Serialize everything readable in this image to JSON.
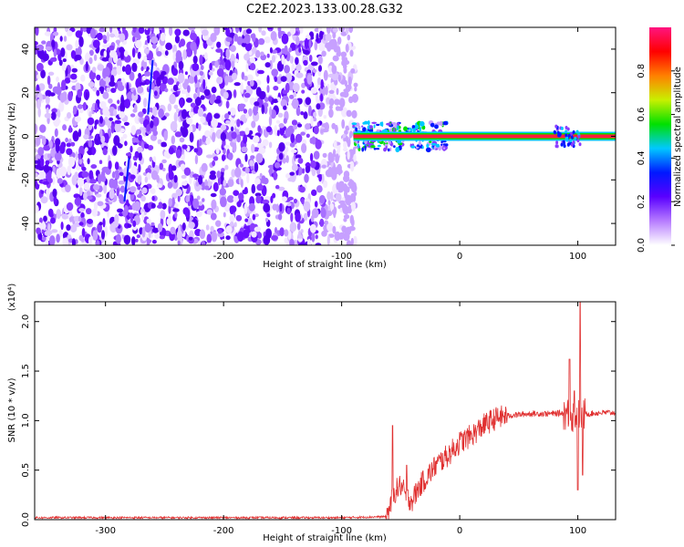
{
  "title": "C2E2.2023.133.00.28.G32",
  "chart_data": [
    {
      "type": "heatmap",
      "xlabel": "Height of straight line (km)",
      "ylabel": "Frequency (Hz)",
      "xlim": [
        -360,
        132
      ],
      "ylim": [
        -50,
        50
      ],
      "xticks": [
        -300,
        -200,
        -100,
        0,
        100
      ],
      "yticks": [
        -40,
        -20,
        0,
        20,
        40
      ],
      "noise_region_x": [
        -360,
        -88
      ],
      "carrier_start_x": -90,
      "carrier_frequency_hz": 0,
      "colorbar": {
        "label": "Normalized spectral amplitude",
        "range": [
          0,
          1
        ],
        "ticks": [
          "0.0",
          "0.2",
          "0.4",
          "0.6",
          "0.8"
        ],
        "colors": [
          "#ffffff",
          "#b77cff",
          "#5a00ff",
          "#0018ff",
          "#00c8ff",
          "#00e000",
          "#c8f000",
          "#ff8000",
          "#ff0000",
          "#ff1480"
        ]
      },
      "grid": false
    },
    {
      "type": "line",
      "xlabel": "Height of straight line (km)",
      "ylabel": "SNR (10 * v/v)",
      "y_multiplier_label": "(x10⁴)",
      "xlim": [
        -360,
        132
      ],
      "ylim": [
        0,
        2.2
      ],
      "xticks": [
        -300,
        -200,
        -100,
        0,
        100
      ],
      "yticks": [
        "0.0",
        "0.5",
        "1.0",
        "1.5",
        "2.0"
      ],
      "color": "#e03030",
      "profile_x": [
        -360,
        -100,
        -62,
        -55,
        -50,
        -45,
        -40,
        -35,
        -30,
        -20,
        -10,
        0,
        10,
        20,
        30,
        40,
        60,
        80,
        90,
        95,
        100,
        105,
        110,
        120,
        132
      ],
      "profile_y": [
        0.02,
        0.02,
        0.03,
        0.28,
        0.35,
        0.22,
        0.2,
        0.32,
        0.4,
        0.55,
        0.65,
        0.78,
        0.85,
        0.95,
        1.02,
        1.05,
        1.07,
        1.07,
        1.08,
        1.05,
        1.06,
        1.07,
        1.07,
        1.08,
        1.08
      ],
      "spikes": [
        {
          "x": -57,
          "y": 0.95
        },
        {
          "x": -45,
          "y": 0.55
        },
        {
          "x": 93,
          "y": 1.62
        },
        {
          "x": 97,
          "y": 1.3
        },
        {
          "x": 100,
          "y": 0.3
        },
        {
          "x": 102,
          "y": 2.2
        },
        {
          "x": 104,
          "y": 0.45
        }
      ],
      "grid": false
    }
  ]
}
